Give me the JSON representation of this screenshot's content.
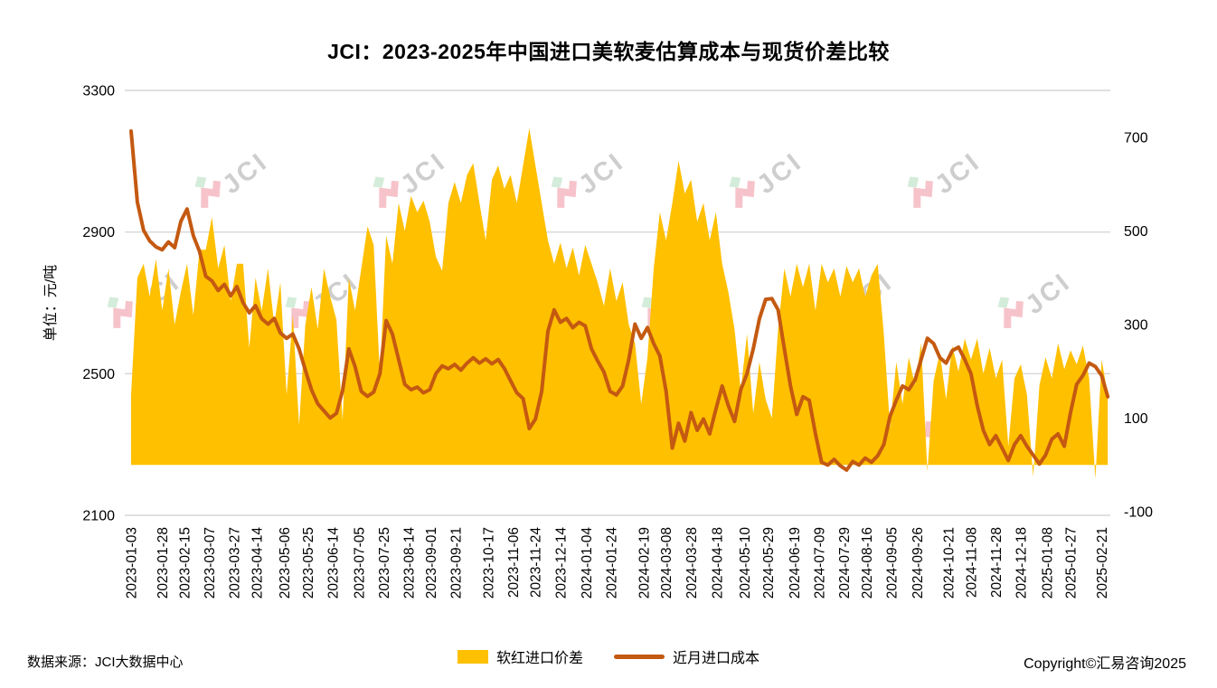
{
  "title": "JCI：2023-2025年中国进口美软麦估算成本与现货价差比较",
  "source_note": "数据来源：JCI大数据中心",
  "copyright": "Copyright©汇易咨询2025",
  "watermark_text": "JCI",
  "colors": {
    "area": "#FFC000",
    "line": "#C45911",
    "grid": "#D6D6D6",
    "watermark_gray": "#C6C6C6",
    "watermark_pink": "#F6B9C2",
    "watermark_green": "#CDE9D4",
    "text": "#000000"
  },
  "legend": [
    {
      "label": "软红进口价差",
      "type": "area"
    },
    {
      "label": "近月进口成本",
      "type": "line"
    }
  ],
  "chart_data": {
    "type": "area+line",
    "title": "JCI：2023-2025年中国进口美软麦估算成本与现货价差比较",
    "ylabel_left": "单位：元/吨",
    "grid": true,
    "legend_position": "bottom",
    "y_left": {
      "min": 2100,
      "max": 3300,
      "ticks": [
        2100,
        2500,
        2900,
        3300
      ]
    },
    "y_right": {
      "min": -100,
      "max": 700,
      "ticks": [
        -100,
        100,
        300,
        500,
        700
      ]
    },
    "x_range": [
      "2023-01-03",
      "2025-02-28"
    ],
    "x_tick_labels": [
      "2023-01-03",
      "2023-01-28",
      "2023-02-15",
      "2023-03-07",
      "2023-03-27",
      "2023-04-14",
      "2023-05-06",
      "2023-05-25",
      "2023-06-14",
      "2023-07-05",
      "2023-07-25",
      "2023-08-14",
      "2023-09-01",
      "2023-09-21",
      "2023-10-17",
      "2023-11-06",
      "2023-11-24",
      "2023-12-14",
      "2024-01-04",
      "2024-01-24",
      "2024-02-19",
      "2024-03-08",
      "2024-03-28",
      "2024-04-18",
      "2024-05-10",
      "2024-05-29",
      "2024-06-19",
      "2024-07-09",
      "2024-07-29",
      "2024-08-16",
      "2024-09-05",
      "2024-09-26",
      "2024-10-21",
      "2024-11-08",
      "2024-11-28",
      "2024-12-18",
      "2025-01-08",
      "2025-01-27",
      "2025-02-21"
    ],
    "dates": [
      "2023-01-03",
      "2023-01-08",
      "2023-01-13",
      "2023-01-18",
      "2023-01-23",
      "2023-01-28",
      "2023-02-02",
      "2023-02-07",
      "2023-02-12",
      "2023-02-17",
      "2023-02-22",
      "2023-02-27",
      "2023-03-04",
      "2023-03-09",
      "2023-03-14",
      "2023-03-19",
      "2023-03-24",
      "2023-03-29",
      "2023-04-03",
      "2023-04-08",
      "2023-04-13",
      "2023-04-18",
      "2023-04-23",
      "2023-04-28",
      "2023-05-03",
      "2023-05-08",
      "2023-05-13",
      "2023-05-18",
      "2023-05-23",
      "2023-05-28",
      "2023-06-02",
      "2023-06-07",
      "2023-06-12",
      "2023-06-17",
      "2023-06-22",
      "2023-06-27",
      "2023-07-02",
      "2023-07-07",
      "2023-07-12",
      "2023-07-17",
      "2023-07-22",
      "2023-07-27",
      "2023-08-01",
      "2023-08-06",
      "2023-08-11",
      "2023-08-16",
      "2023-08-21",
      "2023-08-26",
      "2023-08-31",
      "2023-09-05",
      "2023-09-10",
      "2023-09-15",
      "2023-09-20",
      "2023-09-25",
      "2023-09-30",
      "2023-10-05",
      "2023-10-10",
      "2023-10-15",
      "2023-10-20",
      "2023-10-25",
      "2023-10-30",
      "2023-11-04",
      "2023-11-09",
      "2023-11-14",
      "2023-11-19",
      "2023-11-24",
      "2023-11-29",
      "2023-12-04",
      "2023-12-09",
      "2023-12-14",
      "2023-12-19",
      "2023-12-24",
      "2023-12-29",
      "2024-01-03",
      "2024-01-08",
      "2024-01-13",
      "2024-01-18",
      "2024-01-23",
      "2024-01-28",
      "2024-02-02",
      "2024-02-07",
      "2024-02-12",
      "2024-02-17",
      "2024-02-22",
      "2024-02-27",
      "2024-03-03",
      "2024-03-08",
      "2024-03-13",
      "2024-03-18",
      "2024-03-23",
      "2024-03-28",
      "2024-04-02",
      "2024-04-07",
      "2024-04-12",
      "2024-04-17",
      "2024-04-22",
      "2024-04-27",
      "2024-05-02",
      "2024-05-07",
      "2024-05-12",
      "2024-05-17",
      "2024-05-22",
      "2024-05-27",
      "2024-06-01",
      "2024-06-06",
      "2024-06-11",
      "2024-06-16",
      "2024-06-21",
      "2024-06-26",
      "2024-07-01",
      "2024-07-06",
      "2024-07-11",
      "2024-07-16",
      "2024-07-21",
      "2024-07-26",
      "2024-07-31",
      "2024-08-05",
      "2024-08-10",
      "2024-08-15",
      "2024-08-20",
      "2024-08-25",
      "2024-08-30",
      "2024-09-04",
      "2024-09-09",
      "2024-09-14",
      "2024-09-19",
      "2024-09-24",
      "2024-09-29",
      "2024-10-04",
      "2024-10-09",
      "2024-10-14",
      "2024-10-19",
      "2024-10-24",
      "2024-10-29",
      "2024-11-03",
      "2024-11-08",
      "2024-11-13",
      "2024-11-18",
      "2024-11-23",
      "2024-11-28",
      "2024-12-03",
      "2024-12-08",
      "2024-12-13",
      "2024-12-18",
      "2024-12-23",
      "2024-12-28",
      "2025-01-02",
      "2025-01-07",
      "2025-01-12",
      "2025-01-17",
      "2025-01-22",
      "2025-01-27",
      "2025-02-01",
      "2025-02-06",
      "2025-02-11",
      "2025-02-16",
      "2025-02-21",
      "2025-02-26"
    ],
    "series": [
      {
        "name": "软红进口价差",
        "type": "area",
        "axis": "right",
        "color": "#FFC000",
        "values": [
          150,
          400,
          430,
          360,
          440,
          330,
          420,
          300,
          370,
          430,
          320,
          460,
          460,
          530,
          420,
          470,
          350,
          430,
          430,
          250,
          400,
          330,
          420,
          300,
          390,
          150,
          320,
          85,
          300,
          380,
          290,
          420,
          360,
          310,
          95,
          400,
          330,
          420,
          510,
          470,
          190,
          490,
          430,
          560,
          500,
          575,
          540,
          565,
          520,
          445,
          415,
          560,
          605,
          560,
          620,
          645,
          560,
          480,
          610,
          640,
          590,
          620,
          560,
          640,
          720,
          640,
          560,
          480,
          430,
          475,
          420,
          465,
          405,
          470,
          430,
          390,
          340,
          420,
          350,
          390,
          300,
          260,
          130,
          230,
          420,
          540,
          480,
          560,
          650,
          580,
          610,
          520,
          560,
          480,
          540,
          430,
          370,
          290,
          160,
          280,
          110,
          220,
          140,
          100,
          290,
          420,
          360,
          430,
          380,
          430,
          330,
          430,
          390,
          420,
          360,
          425,
          390,
          420,
          360,
          405,
          430,
          280,
          80,
          220,
          130,
          230,
          170,
          260,
          -15,
          180,
          240,
          140,
          255,
          200,
          270,
          225,
          270,
          195,
          250,
          185,
          225,
          40,
          185,
          215,
          150,
          -25,
          170,
          230,
          185,
          260,
          205,
          245,
          215,
          255,
          185,
          -30,
          225,
          150
        ]
      },
      {
        "name": "近月进口成本",
        "type": "line",
        "axis": "left",
        "color": "#C45911",
        "values": [
          3185,
          2985,
          2905,
          2875,
          2858,
          2850,
          2872,
          2856,
          2930,
          2965,
          2890,
          2845,
          2775,
          2762,
          2735,
          2752,
          2720,
          2746,
          2700,
          2672,
          2692,
          2655,
          2640,
          2656,
          2615,
          2600,
          2612,
          2570,
          2510,
          2455,
          2415,
          2395,
          2375,
          2388,
          2452,
          2570,
          2520,
          2450,
          2436,
          2448,
          2500,
          2650,
          2612,
          2540,
          2470,
          2455,
          2462,
          2446,
          2455,
          2500,
          2522,
          2514,
          2526,
          2510,
          2530,
          2545,
          2530,
          2542,
          2528,
          2540,
          2515,
          2480,
          2446,
          2430,
          2345,
          2372,
          2450,
          2620,
          2680,
          2645,
          2656,
          2630,
          2645,
          2635,
          2570,
          2536,
          2505,
          2450,
          2440,
          2465,
          2540,
          2640,
          2600,
          2630,
          2585,
          2550,
          2450,
          2290,
          2360,
          2310,
          2390,
          2340,
          2372,
          2330,
          2400,
          2465,
          2410,
          2365,
          2455,
          2500,
          2570,
          2655,
          2710,
          2712,
          2680,
          2570,
          2465,
          2385,
          2435,
          2425,
          2330,
          2250,
          2242,
          2258,
          2240,
          2228,
          2252,
          2242,
          2262,
          2250,
          2268,
          2300,
          2380,
          2425,
          2465,
          2455,
          2482,
          2540,
          2600,
          2585,
          2545,
          2530,
          2565,
          2575,
          2540,
          2500,
          2410,
          2340,
          2300,
          2325,
          2290,
          2255,
          2300,
          2325,
          2295,
          2270,
          2245,
          2270,
          2315,
          2330,
          2295,
          2390,
          2470,
          2495,
          2530,
          2520,
          2495,
          2435
        ]
      }
    ]
  }
}
